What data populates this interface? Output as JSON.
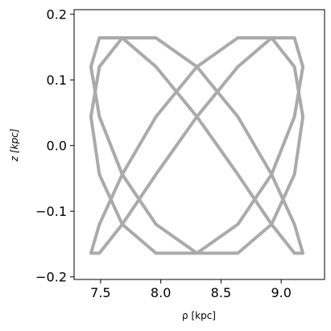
{
  "chart_data": {
    "type": "line",
    "x_label": "ρ [kpc]",
    "y_label": "z [kpc]",
    "xlim": [
      7.28,
      9.36
    ],
    "ylim": [
      -0.204,
      0.207
    ],
    "xticks": [
      {
        "value": 7.5,
        "label": "7.5"
      },
      {
        "value": 8.0,
        "label": "8.0"
      },
      {
        "value": 8.5,
        "label": "8.5"
      },
      {
        "value": 9.0,
        "label": "9.0"
      }
    ],
    "yticks": [
      {
        "value": -0.2,
        "label": "−0.2"
      },
      {
        "value": -0.1,
        "label": "−0.1"
      },
      {
        "value": 0.0,
        "label": "0.0"
      },
      {
        "value": 0.1,
        "label": "0.1"
      },
      {
        "value": 0.2,
        "label": "0.2"
      }
    ],
    "grid": false,
    "series": [
      {
        "color": "#aaaaaa",
        "x": [
          9.18,
          9.11,
          8.92,
          8.64,
          8.3,
          7.96,
          7.68,
          7.49,
          7.42,
          7.49,
          7.68,
          7.96,
          8.3,
          8.64,
          8.92,
          9.11,
          9.18,
          9.11,
          8.92,
          8.64,
          8.3,
          7.96,
          7.68,
          7.49,
          7.42,
          7.49,
          7.68,
          7.96,
          8.3,
          8.64,
          8.92,
          9.11,
          9.18,
          9.11,
          8.92,
          8.64,
          8.3,
          7.96,
          7.68,
          7.49,
          7.42,
          7.49,
          7.68,
          7.96,
          8.3,
          8.64,
          8.92,
          9.11,
          9.18
        ],
        "values": [
          0.044,
          0.12,
          0.164,
          0.164,
          0.12,
          0.044,
          -0.044,
          -0.12,
          -0.164,
          -0.164,
          -0.12,
          -0.044,
          0.044,
          0.12,
          0.164,
          0.164,
          0.12,
          0.044,
          -0.044,
          -0.12,
          -0.164,
          -0.164,
          -0.12,
          -0.044,
          0.044,
          0.12,
          0.164,
          0.164,
          0.12,
          0.044,
          -0.044,
          -0.12,
          -0.164,
          -0.164,
          -0.12,
          -0.044,
          0.044,
          0.12,
          0.164,
          0.164,
          0.12,
          0.044,
          -0.044,
          -0.12,
          -0.164,
          -0.164,
          -0.12,
          -0.044,
          0.044
        ]
      }
    ]
  }
}
